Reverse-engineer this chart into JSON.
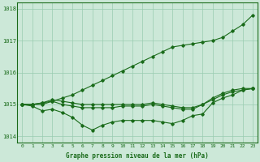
{
  "x": [
    0,
    1,
    2,
    3,
    4,
    5,
    6,
    7,
    8,
    9,
    10,
    11,
    12,
    13,
    14,
    15,
    16,
    17,
    18,
    19,
    20,
    21,
    22,
    23
  ],
  "line1": [
    1015.0,
    1015.0,
    1015.05,
    1015.1,
    1015.2,
    1015.3,
    1015.45,
    1015.6,
    1015.75,
    1015.9,
    1016.05,
    1016.2,
    1016.35,
    1016.5,
    1016.65,
    1016.8,
    1016.85,
    1016.9,
    1016.95,
    1017.0,
    1017.1,
    1017.3,
    1017.5,
    1017.8
  ],
  "line2": [
    1015.0,
    1015.0,
    1015.0,
    1015.1,
    1015.0,
    1014.95,
    1014.9,
    1014.9,
    1014.9,
    1014.9,
    1014.95,
    1014.95,
    1014.95,
    1015.0,
    1014.95,
    1014.9,
    1014.85,
    1014.85,
    1015.0,
    1015.2,
    1015.35,
    1015.45,
    1015.5,
    1015.5
  ],
  "line3": [
    1015.0,
    1014.95,
    1014.8,
    1014.85,
    1014.75,
    1014.6,
    1014.35,
    1014.2,
    1014.35,
    1014.45,
    1014.5,
    1014.5,
    1014.5,
    1014.5,
    1014.45,
    1014.4,
    1014.5,
    1014.65,
    1014.7,
    1015.05,
    1015.2,
    1015.3,
    1015.45,
    1015.5
  ],
  "line4": [
    1015.0,
    1015.0,
    1015.05,
    1015.15,
    1015.1,
    1015.05,
    1015.0,
    1015.0,
    1015.0,
    1015.0,
    1015.0,
    1015.0,
    1015.0,
    1015.05,
    1015.0,
    1014.95,
    1014.9,
    1014.9,
    1015.0,
    1015.15,
    1015.3,
    1015.4,
    1015.45,
    1015.5
  ],
  "ylim": [
    1013.8,
    1018.2
  ],
  "yticks": [
    1014,
    1015,
    1016,
    1017,
    1018
  ],
  "xticks": [
    0,
    1,
    2,
    3,
    4,
    5,
    6,
    7,
    8,
    9,
    10,
    11,
    12,
    13,
    14,
    15,
    16,
    17,
    18,
    19,
    20,
    21,
    22,
    23
  ],
  "xlabel": "Graphe pression niveau de la mer (hPa)",
  "line_color": "#1a6b1a",
  "bg_color": "#cce8d8",
  "grid_color": "#99ccb0",
  "marker": "D",
  "marker_size": 1.8,
  "linewidth": 0.8
}
